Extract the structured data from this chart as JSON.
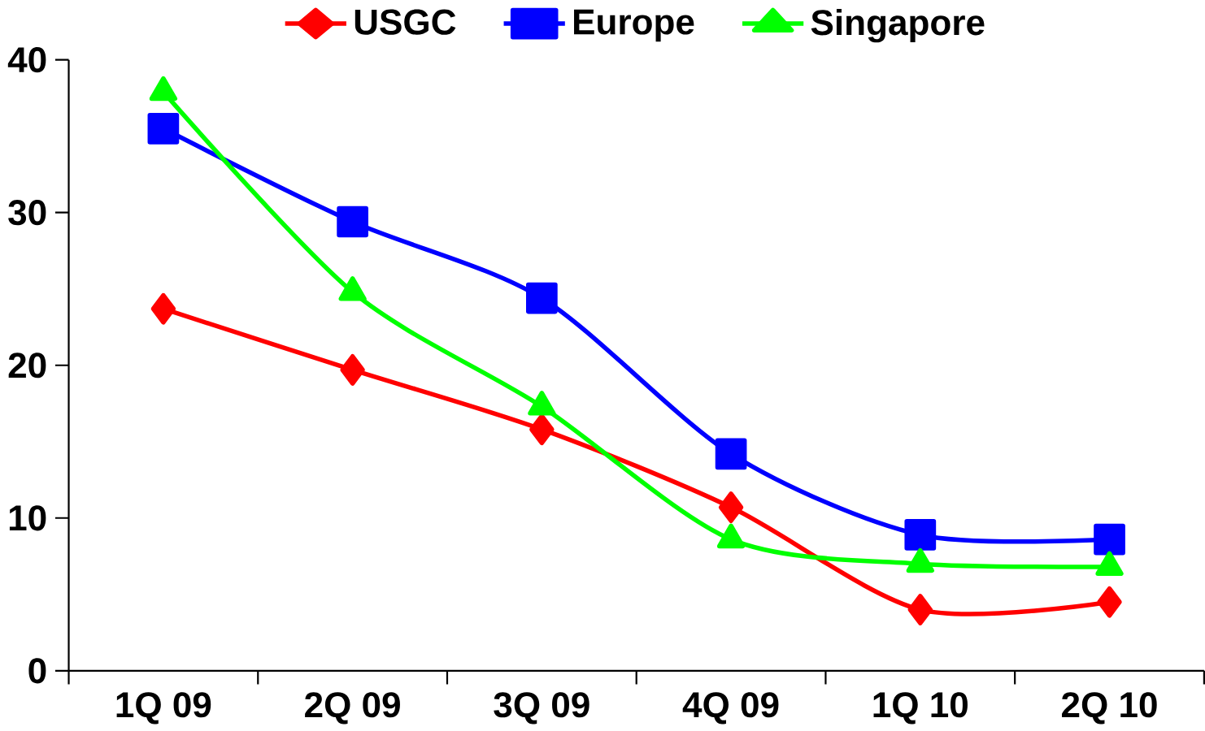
{
  "chart_data": {
    "type": "line",
    "categories": [
      "1Q 09",
      "2Q 09",
      "3Q 09",
      "4Q 09",
      "1Q 10",
      "2Q 10"
    ],
    "series": [
      {
        "name": "USGC",
        "color": "#ff0000",
        "marker": "diamond",
        "values": [
          23.7,
          19.7,
          15.8,
          10.7,
          4.0,
          4.5
        ]
      },
      {
        "name": "Europe",
        "color": "#0000ff",
        "marker": "square",
        "values": [
          35.5,
          29.4,
          24.4,
          14.2,
          8.9,
          8.6
        ]
      },
      {
        "name": "Singapore",
        "color": "#00ff00",
        "marker": "triangle",
        "values": [
          37.9,
          24.8,
          17.3,
          8.6,
          7.0,
          6.8
        ]
      }
    ],
    "ylim": [
      0,
      40
    ],
    "yticks": [
      0,
      10,
      20,
      30,
      40
    ],
    "grid": false,
    "legend": "top",
    "line_style": "solid"
  }
}
